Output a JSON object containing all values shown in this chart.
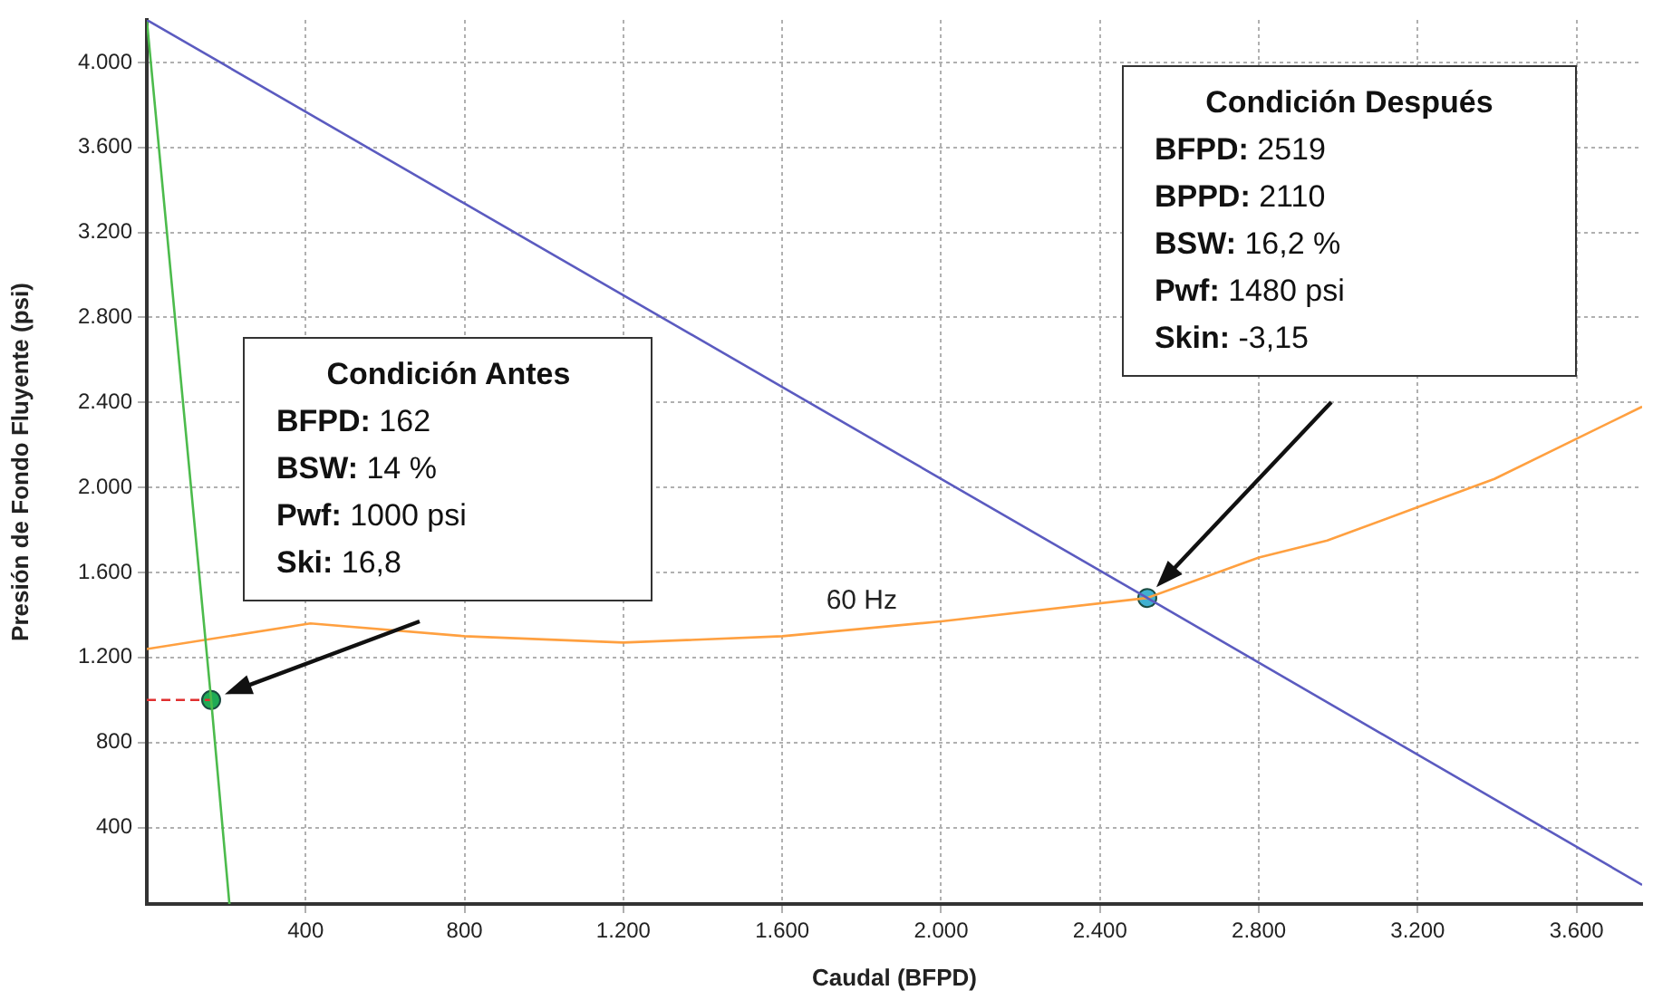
{
  "chart_data": {
    "type": "line",
    "xlabel": "Caudal (BFPD)",
    "ylabel": "Presión de Fondo Fluyente (psi)",
    "xlim": [
      0,
      3765
    ],
    "ylim": [
      40,
      4200
    ],
    "xticks": [
      400,
      800,
      {
        "value": 1200,
        "label": "1.200"
      },
      {
        "value": 1600,
        "label": "1.600"
      },
      {
        "value": 2000,
        "label": "2.000"
      },
      {
        "value": 2400,
        "label": "2.400"
      },
      {
        "value": 2800,
        "label": "2.800"
      },
      {
        "value": 3200,
        "label": "3.200"
      },
      {
        "value": 3600,
        "label": "3.600"
      }
    ],
    "yticks": [
      400,
      800,
      {
        "value": 1200,
        "label": "1.200"
      },
      {
        "value": 1600,
        "label": "1.600"
      },
      {
        "value": 2000,
        "label": "2.000"
      },
      {
        "value": 2400,
        "label": "2.400"
      },
      {
        "value": 2800,
        "label": "2.800"
      },
      {
        "value": 3200,
        "label": "3.200"
      },
      {
        "value": 3600,
        "label": "3.600"
      },
      {
        "value": 4000,
        "label": "4.000"
      }
    ],
    "grid": true,
    "legend": false,
    "series": [
      {
        "type": "line",
        "color": "#5b5bc0",
        "x": [
          0,
          2519,
          3765
        ],
        "values": [
          4200,
          1480,
          130
        ]
      },
      {
        "type": "line",
        "color": "#4cbb4c",
        "x": [
          0,
          162,
          208
        ],
        "values": [
          4200,
          1000,
          40
        ]
      },
      {
        "type": "line",
        "name": "60 Hz",
        "color": "#ffa040",
        "x": [
          0,
          412,
          800,
          1200,
          1600,
          2000,
          2519,
          2800,
          2972,
          3204,
          3393,
          3765
        ],
        "values": [
          1240,
          1360,
          1300,
          1270,
          1300,
          1370,
          1480,
          1670,
          1750,
          1910,
          2040,
          2380
        ]
      },
      {
        "type": "line",
        "color": "#e03030",
        "line_style": "dashed",
        "x": [
          0,
          162
        ],
        "values": [
          1000,
          1000
        ]
      },
      {
        "type": "scatter",
        "color": "#1faa55",
        "marker": "circle",
        "x": [
          162
        ],
        "values": [
          1000
        ]
      },
      {
        "type": "scatter",
        "color": "#40b0d0",
        "marker": "circle",
        "x": [
          2519
        ],
        "values": [
          1480
        ]
      }
    ],
    "annotations": [
      "Condición Antes",
      "BFPD: 162",
      "BSW: 14 %",
      "Pwf: 1000 psi",
      "Ski: 16,8",
      "Condición Después",
      "BFPD: 2519",
      "BPPD: 2110",
      "BSW: 16,2 %",
      "Pwf: 1480 psi",
      "Skin: -3,15"
    ]
  }
}
